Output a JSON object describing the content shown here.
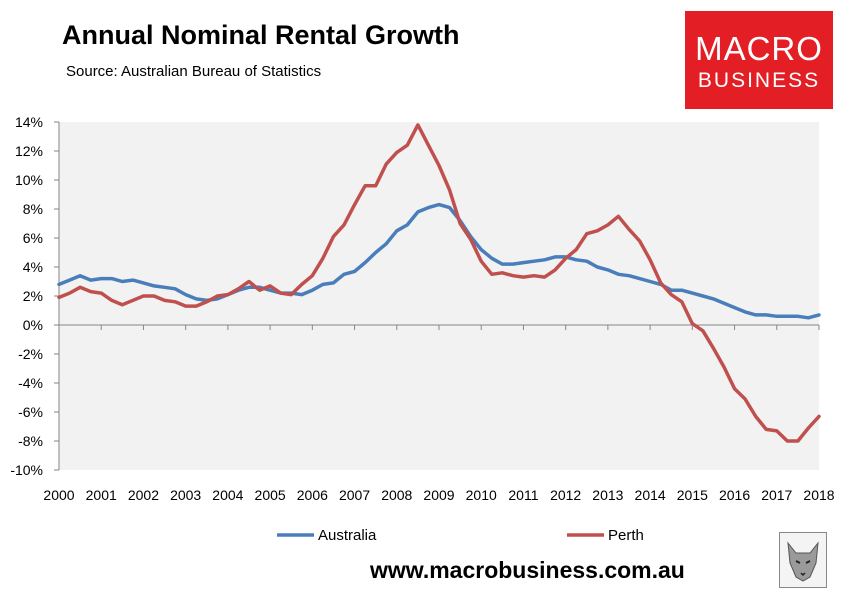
{
  "header": {
    "title": "Annual Nominal Rental Growth",
    "subtitle": "Source: Australian Bureau of Statistics"
  },
  "logo": {
    "line1": "MACRO",
    "line2": "BUSINESS"
  },
  "footer": {
    "url": "www.macrobusiness.com.au"
  },
  "colors": {
    "australia": "#4a7ebb",
    "perth": "#c0504d",
    "plot_bg": "#f2f2f2"
  },
  "chart_data": {
    "type": "line",
    "title": "Annual Nominal Rental Growth",
    "xlabel": "",
    "ylabel": "",
    "ylim": [
      -10,
      14
    ],
    "xlim": [
      2000,
      2018
    ],
    "yticks": [
      "14%",
      "12%",
      "10%",
      "8%",
      "6%",
      "4%",
      "2%",
      "0%",
      "-2%",
      "-4%",
      "-6%",
      "-8%",
      "-10%"
    ],
    "xticks": [
      "2000",
      "2001",
      "2002",
      "2003",
      "2004",
      "2005",
      "2006",
      "2007",
      "2008",
      "2009",
      "2010",
      "2011",
      "2012",
      "2013",
      "2014",
      "2015",
      "2016",
      "2017",
      "2018"
    ],
    "legend_position": "bottom",
    "x": [
      2000.0,
      2000.25,
      2000.5,
      2000.75,
      2001.0,
      2001.25,
      2001.5,
      2001.75,
      2002.0,
      2002.25,
      2002.5,
      2002.75,
      2003.0,
      2003.25,
      2003.5,
      2003.75,
      2004.0,
      2004.25,
      2004.5,
      2004.75,
      2005.0,
      2005.25,
      2005.5,
      2005.75,
      2006.0,
      2006.25,
      2006.5,
      2006.75,
      2007.0,
      2007.25,
      2007.5,
      2007.75,
      2008.0,
      2008.25,
      2008.5,
      2008.75,
      2009.0,
      2009.25,
      2009.5,
      2009.75,
      2010.0,
      2010.25,
      2010.5,
      2010.75,
      2011.0,
      2011.25,
      2011.5,
      2011.75,
      2012.0,
      2012.25,
      2012.5,
      2012.75,
      2013.0,
      2013.25,
      2013.5,
      2013.75,
      2014.0,
      2014.25,
      2014.5,
      2014.75,
      2015.0,
      2015.25,
      2015.5,
      2015.75,
      2016.0,
      2016.25,
      2016.5,
      2016.75,
      2017.0,
      2017.25,
      2017.5,
      2017.75,
      2018.0
    ],
    "series": [
      {
        "name": "Australia",
        "color": "#4a7ebb",
        "values": [
          2.8,
          3.1,
          3.4,
          3.1,
          3.2,
          3.2,
          3.0,
          3.1,
          2.9,
          2.7,
          2.6,
          2.5,
          2.1,
          1.8,
          1.7,
          1.8,
          2.1,
          2.4,
          2.6,
          2.6,
          2.4,
          2.2,
          2.2,
          2.1,
          2.4,
          2.8,
          2.9,
          3.5,
          3.7,
          4.3,
          5.0,
          5.6,
          6.5,
          6.9,
          7.8,
          8.1,
          8.3,
          8.1,
          7.2,
          6.1,
          5.2,
          4.6,
          4.2,
          4.2,
          4.3,
          4.4,
          4.5,
          4.7,
          4.7,
          4.5,
          4.4,
          4.0,
          3.8,
          3.5,
          3.4,
          3.2,
          3.0,
          2.8,
          2.4,
          2.4,
          2.2,
          2.0,
          1.8,
          1.5,
          1.2,
          0.9,
          0.7,
          0.7,
          0.6,
          0.6,
          0.6,
          0.5,
          0.7
        ]
      },
      {
        "name": "Perth",
        "color": "#c0504d",
        "values": [
          1.9,
          2.2,
          2.6,
          2.3,
          2.2,
          1.7,
          1.4,
          1.7,
          2.0,
          2.0,
          1.7,
          1.6,
          1.3,
          1.3,
          1.6,
          2.0,
          2.1,
          2.5,
          3.0,
          2.4,
          2.7,
          2.2,
          2.1,
          2.8,
          3.4,
          4.6,
          6.1,
          6.9,
          8.3,
          9.6,
          9.6,
          11.1,
          11.9,
          12.4,
          13.8,
          12.4,
          11.0,
          9.3,
          7.0,
          5.9,
          4.4,
          3.5,
          3.6,
          3.4,
          3.3,
          3.4,
          3.3,
          3.8,
          4.6,
          5.2,
          6.3,
          6.5,
          6.9,
          7.5,
          6.6,
          5.8,
          4.5,
          2.9,
          2.1,
          1.6,
          0.1,
          -0.4,
          -1.6,
          -2.9,
          -4.4,
          -5.1,
          -6.3,
          -7.2,
          -7.3,
          -8.0,
          -8.0,
          -7.1,
          -6.3
        ]
      }
    ]
  }
}
